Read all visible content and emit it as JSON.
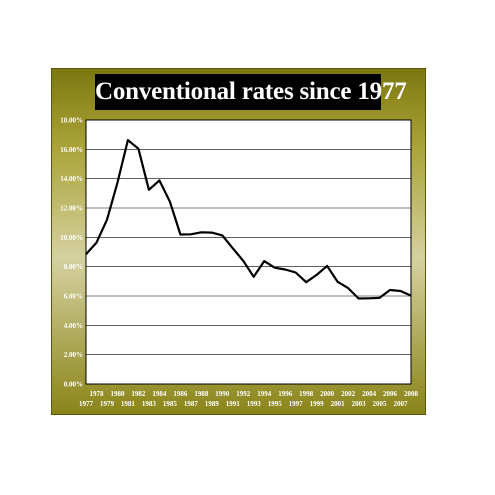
{
  "chart_data": {
    "type": "line",
    "title": "Conventional rates since 1977",
    "xlabel": "",
    "ylabel": "",
    "ylim": [
      0,
      18
    ],
    "y_ticks": [
      "0.00%",
      "2.00%",
      "4.00%",
      "6.00%",
      "8.00%",
      "10.00%",
      "12.00%",
      "14.00%",
      "16.00%",
      "18.00%"
    ],
    "x_tick_labels_top": [
      "1978",
      "1980",
      "1982",
      "1984",
      "1986",
      "1988",
      "1990",
      "1992",
      "1994",
      "1996",
      "1998",
      "2000",
      "2002",
      "2004",
      "2006",
      "2008"
    ],
    "x_tick_labels_bottom": [
      "1977",
      "1979",
      "1981",
      "1983",
      "1985",
      "1987",
      "1989",
      "1991",
      "1993",
      "1995",
      "1997",
      "1999",
      "2001",
      "2003",
      "2005",
      "2007"
    ],
    "grid": true,
    "legend": "none",
    "series": [
      {
        "color": "#000000",
        "x": [
          1977,
          1978,
          1979,
          1980,
          1981,
          1982,
          1983,
          1984,
          1985,
          1986,
          1987,
          1988,
          1989,
          1990,
          1991,
          1992,
          1993,
          1994,
          1995,
          1996,
          1997,
          1998,
          1999,
          2000,
          2001,
          2002,
          2003,
          2004,
          2005,
          2006,
          2007,
          2008
        ],
        "values": [
          8.85,
          9.64,
          11.2,
          13.74,
          16.63,
          16.04,
          13.24,
          13.88,
          12.43,
          10.19,
          10.21,
          10.34,
          10.32,
          10.13,
          9.25,
          8.39,
          7.31,
          8.38,
          7.93,
          7.81,
          7.6,
          6.94,
          7.44,
          8.05,
          6.97,
          6.54,
          5.83,
          5.84,
          5.87,
          6.41,
          6.34,
          6.03
        ]
      }
    ]
  }
}
